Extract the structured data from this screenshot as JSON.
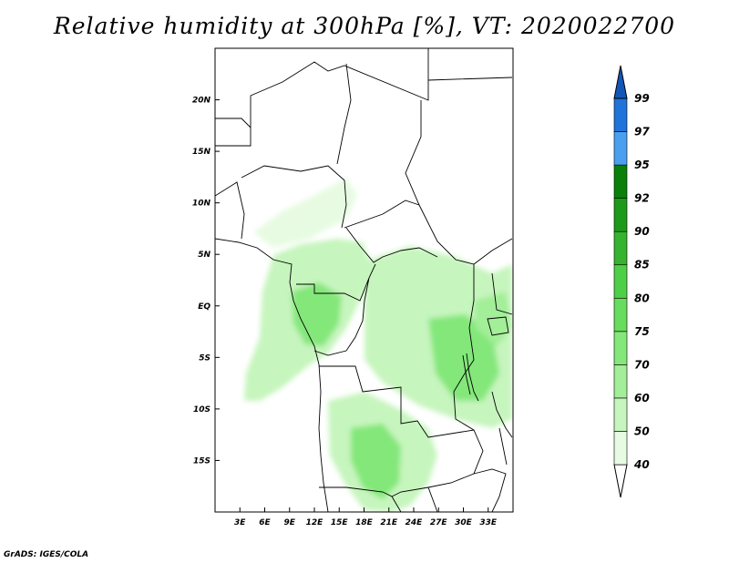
{
  "title": "Relative humidity at 300hPa [%], VT: 2020022700",
  "credit": "GrADS: IGES/COLA",
  "map": {
    "lon_range": [
      0,
      36
    ],
    "lat_range": [
      -20,
      25
    ],
    "x_ticks": [
      {
        "value": 3,
        "label": "3E"
      },
      {
        "value": 6,
        "label": "6E"
      },
      {
        "value": 9,
        "label": "9E"
      },
      {
        "value": 12,
        "label": "12E"
      },
      {
        "value": 15,
        "label": "15E"
      },
      {
        "value": 18,
        "label": "18E"
      },
      {
        "value": 21,
        "label": "21E"
      },
      {
        "value": 24,
        "label": "24E"
      },
      {
        "value": 27,
        "label": "27E"
      },
      {
        "value": 30,
        "label": "30E"
      },
      {
        "value": 33,
        "label": "33E"
      }
    ],
    "y_ticks": [
      {
        "value": 20,
        "label": "20N"
      },
      {
        "value": 15,
        "label": "15N"
      },
      {
        "value": 10,
        "label": "10N"
      },
      {
        "value": 5,
        "label": "5N"
      },
      {
        "value": 0,
        "label": "EQ"
      },
      {
        "value": -5,
        "label": "5S"
      },
      {
        "value": -10,
        "label": "10S"
      },
      {
        "value": -15,
        "label": "15S"
      }
    ]
  },
  "colorbar": {
    "levels": [
      "40",
      "50",
      "60",
      "70",
      "75",
      "80",
      "85",
      "90",
      "92",
      "95",
      "97",
      "99"
    ],
    "colors": [
      "#ffffff",
      "#e7fbe2",
      "#c6f5bd",
      "#a3ee98",
      "#84e77a",
      "#67dc5d",
      "#4fcf47",
      "#36b32f",
      "#1d9a1a",
      "#0a800b",
      "#4aa0ef",
      "#1f73d9",
      "#1356b8"
    ]
  }
}
